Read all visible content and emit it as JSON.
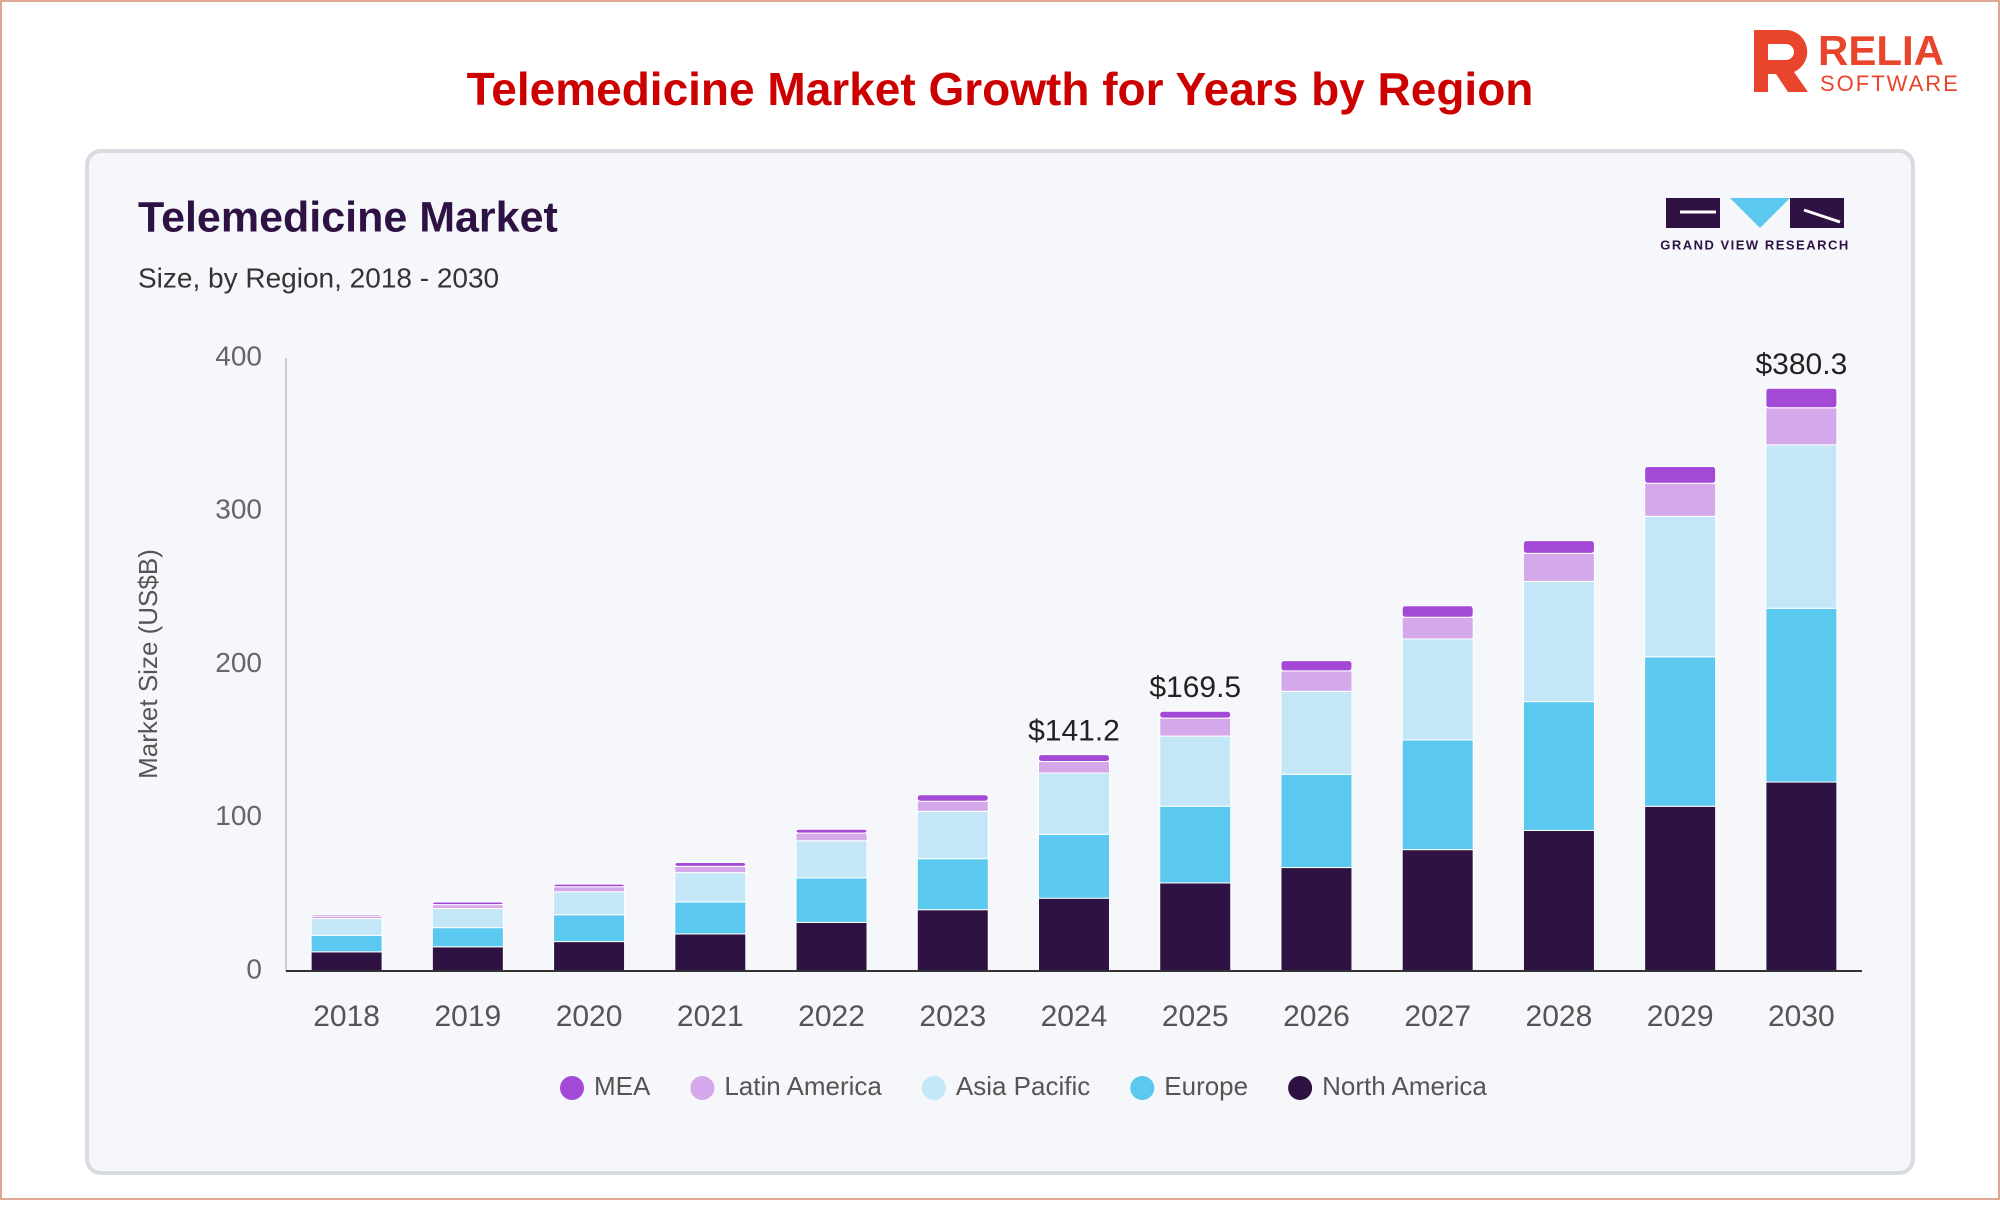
{
  "header": {
    "title": "Telemedicine Market Growth for Years by Region",
    "logo_name": "RELIA",
    "logo_tagline": "SOFTWARE"
  },
  "chart_data": {
    "type": "stacked_bar",
    "title": "Telemedicine Market",
    "subtitle": "Size, by Region, 2018 - 2030",
    "source_logo": "GRAND VIEW RESEARCH",
    "y_label": "Market Size (US$B)",
    "categories": [
      "2018",
      "2019",
      "2020",
      "2021",
      "2022",
      "2023",
      "2024",
      "2025",
      "2026",
      "2027",
      "2028",
      "2029",
      "2030"
    ],
    "series": [
      {
        "name": "MEA",
        "color": "#a349d6",
        "values": [
          0.9,
          1.7,
          1.7,
          2.5,
          2.5,
          4.2,
          4.5,
          4.5,
          6.7,
          7.5,
          8.3,
          10.9,
          12.8
        ]
      },
      {
        "name": "Latin America",
        "color": "#d5a8ec",
        "values": [
          1.6,
          2.5,
          3.3,
          4.1,
          5,
          6.6,
          7.5,
          11.7,
          13.3,
          14.1,
          18.3,
          21.6,
          24.2
        ]
      },
      {
        "name": "Asia Pacific",
        "color": "#c4e7f8",
        "values": [
          10.9,
          12.5,
          15,
          19.2,
          24.2,
          30.9,
          40,
          45.8,
          54.2,
          65.9,
          78.4,
          91.7,
          106.6
        ]
      },
      {
        "name": "Europe",
        "color": "#5bc8ef",
        "values": [
          10.8,
          12.5,
          17.5,
          20.8,
          29.1,
          33.3,
          41.7,
          50,
          60.8,
          71.6,
          84.1,
          97.5,
          113.4
        ]
      },
      {
        "name": "North America",
        "color": "#2d1243",
        "values": [
          12.5,
          15.8,
          19.2,
          24.2,
          31.7,
          40,
          47.5,
          57.5,
          67.5,
          79.2,
          91.7,
          107.5,
          123.3
        ]
      }
    ],
    "annotations": [
      {
        "category": "2024",
        "value": 141.2,
        "label": "$141.2"
      },
      {
        "category": "2025",
        "value": 169.5,
        "label": "$169.5"
      },
      {
        "category": "2030",
        "value": 380.3,
        "label": "$380.3"
      }
    ],
    "ylim": [
      0,
      400
    ],
    "yticks": [
      0,
      100,
      200,
      300,
      400
    ],
    "grid": false,
    "legend": "bottom"
  }
}
